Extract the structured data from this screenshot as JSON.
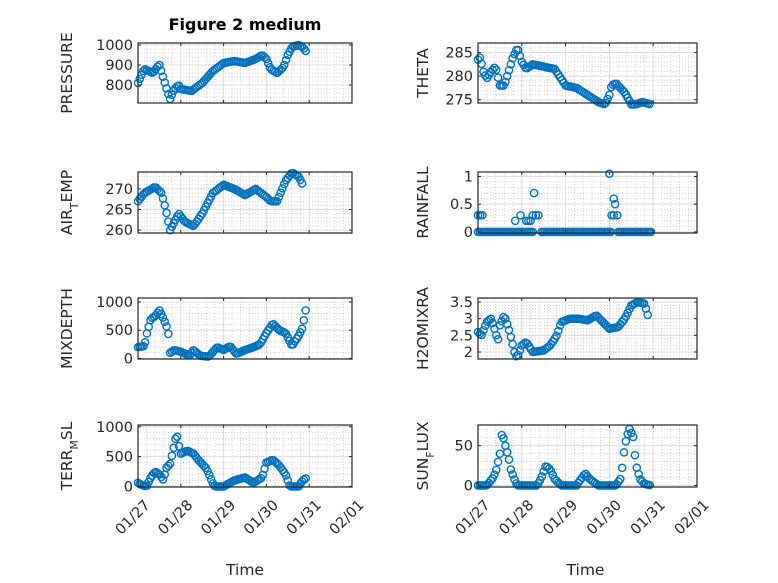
{
  "chart_data": {
    "type": "scatter",
    "title": "Figure 2 medium",
    "marker_color": "#0072BD",
    "marker": "open-circle",
    "x_unit": "days since 01/27 (hourly samples, linearly interpolated between keypoints)",
    "xlabel": "Time",
    "xlim": [
      0,
      5
    ],
    "xticks": [
      0,
      1,
      2,
      3,
      4,
      5
    ],
    "xtick_labels": [
      "01/27",
      "01/28",
      "01/29",
      "01/30",
      "01/31",
      "02/01"
    ],
    "grid": "on (major + minor)",
    "subplots": [
      {
        "id": "pressure",
        "ylabel": {
          "main": "PRESSURE",
          "sub": "",
          "rest": ""
        },
        "ylim": [
          710,
          1010
        ],
        "yticks": [
          800,
          900,
          1000
        ],
        "ytick_labels": [
          "800",
          "900",
          "1000"
        ],
        "keypoints": [
          [
            0,
            810
          ],
          [
            0.1,
            860
          ],
          [
            0.15,
            880
          ],
          [
            0.25,
            870
          ],
          [
            0.35,
            860
          ],
          [
            0.45,
            890
          ],
          [
            0.5,
            900
          ],
          [
            0.6,
            830
          ],
          [
            0.7,
            760
          ],
          [
            0.75,
            730
          ],
          [
            0.85,
            780
          ],
          [
            0.95,
            800
          ],
          [
            1.0,
            780
          ],
          [
            1.25,
            770
          ],
          [
            1.5,
            810
          ],
          [
            1.75,
            870
          ],
          [
            2.0,
            910
          ],
          [
            2.25,
            920
          ],
          [
            2.5,
            910
          ],
          [
            2.75,
            930
          ],
          [
            2.9,
            950
          ],
          [
            3.0,
            930
          ],
          [
            3.1,
            880
          ],
          [
            3.25,
            860
          ],
          [
            3.4,
            890
          ],
          [
            3.5,
            950
          ],
          [
            3.6,
            990
          ],
          [
            3.75,
            1000
          ],
          [
            3.85,
            990
          ],
          [
            3.95,
            960
          ]
        ]
      },
      {
        "id": "theta",
        "ylabel": {
          "main": "THETA",
          "sub": "",
          "rest": ""
        },
        "ylim": [
          274.3,
          287
        ],
        "yticks": [
          275,
          280,
          285
        ],
        "ytick_labels": [
          "275",
          "280",
          "285"
        ],
        "keypoints": [
          [
            0,
            283.5
          ],
          [
            0.05,
            284
          ],
          [
            0.12,
            281
          ],
          [
            0.2,
            279.5
          ],
          [
            0.3,
            281
          ],
          [
            0.4,
            282
          ],
          [
            0.5,
            278
          ],
          [
            0.6,
            278
          ],
          [
            0.7,
            281
          ],
          [
            0.8,
            284
          ],
          [
            0.9,
            286
          ],
          [
            1.0,
            283
          ],
          [
            1.1,
            281.5
          ],
          [
            1.25,
            282.5
          ],
          [
            1.5,
            282
          ],
          [
            1.75,
            281.5
          ],
          [
            2.0,
            278
          ],
          [
            2.25,
            277.5
          ],
          [
            2.5,
            276
          ],
          [
            2.75,
            274.5
          ],
          [
            2.9,
            274
          ],
          [
            3.0,
            276
          ],
          [
            3.05,
            278
          ],
          [
            3.15,
            278.5
          ],
          [
            3.35,
            276.5
          ],
          [
            3.5,
            274
          ],
          [
            3.6,
            274
          ],
          [
            3.75,
            274.5
          ],
          [
            3.95,
            274
          ]
        ]
      },
      {
        "id": "air_temp",
        "ylabel": {
          "main": "AIR",
          "sub": "T",
          "rest": "EMP"
        },
        "ylim": [
          259.3,
          274.1
        ],
        "yticks": [
          260,
          265,
          270
        ],
        "ytick_labels": [
          "260",
          "265",
          "270"
        ],
        "keypoints": [
          [
            0,
            267
          ],
          [
            0.15,
            269
          ],
          [
            0.4,
            270.5
          ],
          [
            0.55,
            269
          ],
          [
            0.65,
            265
          ],
          [
            0.75,
            260
          ],
          [
            0.85,
            262
          ],
          [
            0.95,
            264
          ],
          [
            1.1,
            262
          ],
          [
            1.3,
            261
          ],
          [
            1.5,
            264
          ],
          [
            1.75,
            269
          ],
          [
            2.0,
            271
          ],
          [
            2.25,
            270
          ],
          [
            2.5,
            268.5
          ],
          [
            2.75,
            270
          ],
          [
            3.0,
            268
          ],
          [
            3.1,
            267
          ],
          [
            3.25,
            267
          ],
          [
            3.45,
            272
          ],
          [
            3.6,
            274
          ],
          [
            3.75,
            273
          ],
          [
            3.85,
            271
          ]
        ]
      },
      {
        "id": "rainfall",
        "ylabel": {
          "main": "RAINFALL",
          "sub": "",
          "rest": ""
        },
        "ylim": [
          -0.02,
          1.08
        ],
        "yticks": [
          0,
          0.5,
          1
        ],
        "ytick_labels": [
          "0",
          "0.5",
          "1"
        ],
        "zero_ranges": [
          [
            0,
            1.25
          ],
          [
            1.45,
            3.05
          ],
          [
            3.2,
            3.95
          ]
        ],
        "points": [
          [
            0,
            0.3
          ],
          [
            0.05,
            0.3
          ],
          [
            0.1,
            0.3
          ],
          [
            0.85,
            0.2
          ],
          [
            0.97,
            0.3
          ],
          [
            1.1,
            0.2
          ],
          [
            1.15,
            0.2
          ],
          [
            1.2,
            0.2
          ],
          [
            1.25,
            0.3
          ],
          [
            1.28,
            0.7
          ],
          [
            1.32,
            0.3
          ],
          [
            1.38,
            0.3
          ],
          [
            3.0,
            1.05
          ],
          [
            3.05,
            0.3
          ],
          [
            3.1,
            0.6
          ],
          [
            3.13,
            0.5
          ],
          [
            3.1,
            0.3
          ],
          [
            3.18,
            0.3
          ]
        ]
      },
      {
        "id": "mixdepth",
        "ylabel": {
          "main": "MIXDEPTH",
          "sub": "",
          "rest": ""
        },
        "ylim": [
          -10,
          1070
        ],
        "yticks": [
          0,
          500,
          1000
        ],
        "ytick_labels": [
          "0",
          "500",
          "1000"
        ],
        "keypoints": [
          [
            0,
            200
          ],
          [
            0.15,
            220
          ],
          [
            0.2,
            420
          ],
          [
            0.3,
            700
          ],
          [
            0.4,
            750
          ],
          [
            0.5,
            850
          ],
          [
            0.6,
            700
          ],
          [
            0.7,
            500
          ],
          [
            0.75,
            100
          ],
          [
            0.85,
            150
          ],
          [
            1.0,
            120
          ],
          [
            1.2,
            50
          ],
          [
            1.3,
            150
          ],
          [
            1.45,
            50
          ],
          [
            1.65,
            30
          ],
          [
            1.85,
            200
          ],
          [
            2.0,
            150
          ],
          [
            2.15,
            220
          ],
          [
            2.3,
            80
          ],
          [
            2.5,
            150
          ],
          [
            2.7,
            200
          ],
          [
            2.85,
            250
          ],
          [
            3.0,
            450
          ],
          [
            3.15,
            620
          ],
          [
            3.3,
            500
          ],
          [
            3.45,
            450
          ],
          [
            3.6,
            220
          ],
          [
            3.75,
            400
          ],
          [
            3.85,
            550
          ],
          [
            3.9,
            800
          ],
          [
            3.95,
            950
          ]
        ]
      },
      {
        "id": "h2omixra",
        "ylabel": {
          "main": "H2OMIXRA",
          "sub": "",
          "rest": ""
        },
        "ylim": [
          1.79,
          3.62
        ],
        "yticks": [
          2,
          2.5,
          3,
          3.5
        ],
        "ytick_labels": [
          "2",
          "2.5",
          "3",
          "3.5"
        ],
        "keypoints": [
          [
            0,
            2.6
          ],
          [
            0.08,
            2.5
          ],
          [
            0.2,
            2.9
          ],
          [
            0.3,
            3.0
          ],
          [
            0.4,
            2.6
          ],
          [
            0.45,
            2.3
          ],
          [
            0.5,
            2.8
          ],
          [
            0.6,
            3.1
          ],
          [
            0.7,
            2.7
          ],
          [
            0.78,
            2.3
          ],
          [
            0.85,
            1.9
          ],
          [
            0.9,
            1.85
          ],
          [
            1.0,
            2.2
          ],
          [
            1.1,
            2.3
          ],
          [
            1.25,
            2.0
          ],
          [
            1.5,
            2.05
          ],
          [
            1.65,
            2.2
          ],
          [
            1.8,
            2.5
          ],
          [
            1.9,
            2.9
          ],
          [
            2.1,
            3.0
          ],
          [
            2.3,
            3.0
          ],
          [
            2.5,
            2.95
          ],
          [
            2.7,
            3.1
          ],
          [
            2.85,
            2.9
          ],
          [
            3.0,
            2.7
          ],
          [
            3.2,
            2.75
          ],
          [
            3.35,
            3.0
          ],
          [
            3.5,
            3.4
          ],
          [
            3.65,
            3.5
          ],
          [
            3.8,
            3.45
          ],
          [
            3.9,
            3.0
          ]
        ]
      },
      {
        "id": "terr_msl",
        "ylabel": {
          "main": "TERR",
          "sub": "M",
          "rest": "SL"
        },
        "ylim": [
          -10,
          1030
        ],
        "yticks": [
          0,
          500,
          1000
        ],
        "ytick_labels": [
          "0",
          "500",
          "1000"
        ],
        "keypoints": [
          [
            0,
            60
          ],
          [
            0.1,
            20
          ],
          [
            0.2,
            0
          ],
          [
            0.3,
            150
          ],
          [
            0.4,
            250
          ],
          [
            0.5,
            200
          ],
          [
            0.6,
            100
          ],
          [
            0.65,
            300
          ],
          [
            0.75,
            380
          ],
          [
            0.85,
            700
          ],
          [
            0.9,
            900
          ],
          [
            0.95,
            700
          ],
          [
            1.0,
            550
          ],
          [
            1.15,
            600
          ],
          [
            1.3,
            550
          ],
          [
            1.4,
            450
          ],
          [
            1.6,
            300
          ],
          [
            1.75,
            50
          ],
          [
            1.8,
            0
          ],
          [
            2.0,
            0
          ],
          [
            2.25,
            100
          ],
          [
            2.5,
            150
          ],
          [
            2.7,
            60
          ],
          [
            2.9,
            150
          ],
          [
            3.0,
            400
          ],
          [
            3.15,
            450
          ],
          [
            3.3,
            350
          ],
          [
            3.45,
            200
          ],
          [
            3.55,
            0
          ],
          [
            3.75,
            0
          ],
          [
            3.85,
            100
          ],
          [
            3.95,
            150
          ]
        ]
      },
      {
        "id": "sun_flux",
        "ylabel": {
          "main": "SUN",
          "sub": "F",
          "rest": "LUX"
        },
        "ylim": [
          -2,
          76
        ],
        "yticks": [
          0,
          50
        ],
        "ytick_labels": [
          "0",
          "50"
        ],
        "keypoints": [
          [
            0,
            0
          ],
          [
            0.2,
            0
          ],
          [
            0.35,
            10
          ],
          [
            0.42,
            20
          ],
          [
            0.5,
            40
          ],
          [
            0.55,
            68
          ],
          [
            0.6,
            55
          ],
          [
            0.7,
            35
          ],
          [
            0.75,
            20
          ],
          [
            0.85,
            5
          ],
          [
            0.9,
            0
          ],
          [
            1.35,
            0
          ],
          [
            1.45,
            10
          ],
          [
            1.55,
            25
          ],
          [
            1.65,
            20
          ],
          [
            1.75,
            8
          ],
          [
            1.9,
            0
          ],
          [
            2.25,
            0
          ],
          [
            2.35,
            8
          ],
          [
            2.45,
            15
          ],
          [
            2.55,
            8
          ],
          [
            2.75,
            0
          ],
          [
            3.15,
            0
          ],
          [
            3.25,
            8
          ],
          [
            3.3,
            25
          ],
          [
            3.35,
            50
          ],
          [
            3.45,
            72
          ],
          [
            3.55,
            60
          ],
          [
            3.6,
            27
          ],
          [
            3.7,
            8
          ],
          [
            3.8,
            2
          ],
          [
            3.95,
            0
          ]
        ]
      }
    ]
  }
}
